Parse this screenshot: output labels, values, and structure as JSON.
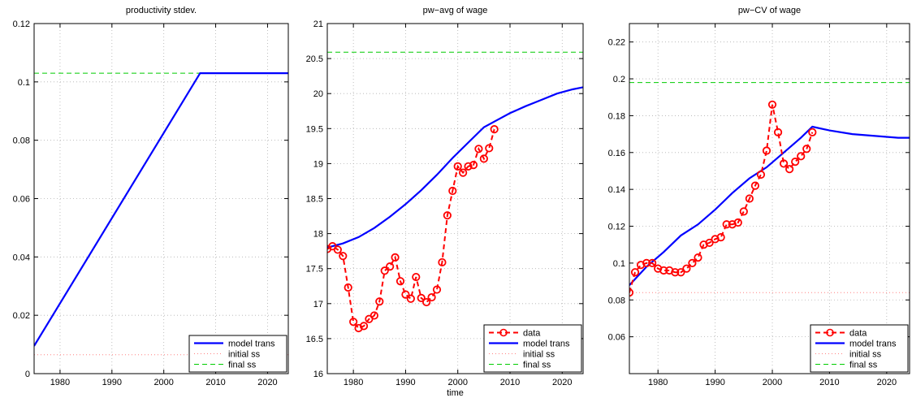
{
  "colors": {
    "model_trans": "#0000ff",
    "data": "#ff0000",
    "initial_ss": "#ff8080",
    "final_ss": "#00cc00",
    "axes": "#000000",
    "grid": "#b0b0b0"
  },
  "x_axis_label": "time",
  "chart_data": [
    {
      "type": "line",
      "title": "productivity stdev.",
      "xlabel": "",
      "ylabel": "",
      "xlim": [
        1975,
        2024
      ],
      "ylim": [
        0,
        0.12
      ],
      "xticks": [
        "1980",
        "1990",
        "2000",
        "2010",
        "2020"
      ],
      "yticks": [
        "0",
        "0.02",
        "0.04",
        "0.06",
        "0.08",
        "0.1",
        "0.12"
      ],
      "grid": true,
      "legend_position": "bottom-right",
      "legend": [
        "model trans",
        "initial ss",
        "final ss"
      ],
      "series": [
        {
          "name": "model trans",
          "x": [
            1975,
            2007,
            2024
          ],
          "y": [
            0.0095,
            0.103,
            0.103
          ]
        },
        {
          "name": "initial ss",
          "x": [
            1975,
            2024
          ],
          "y": [
            0.0065,
            0.0065
          ]
        },
        {
          "name": "final ss",
          "x": [
            1975,
            2024
          ],
          "y": [
            0.103,
            0.103
          ]
        }
      ]
    },
    {
      "type": "line",
      "title": "pw−avg of wage",
      "xlabel": "time",
      "ylabel": "",
      "xlim": [
        1975,
        2024
      ],
      "ylim": [
        16,
        21
      ],
      "xticks": [
        "1980",
        "1990",
        "2000",
        "2010",
        "2020"
      ],
      "yticks": [
        "16",
        "16.5",
        "17",
        "17.5",
        "18",
        "18.5",
        "19",
        "19.5",
        "20",
        "20.5",
        "21"
      ],
      "grid": true,
      "legend_position": "bottom-right",
      "legend": [
        "data",
        "model trans",
        "initial ss",
        "final ss"
      ],
      "series": [
        {
          "name": "data",
          "x": [
            1975,
            1976,
            1977,
            1978,
            1979,
            1980,
            1981,
            1982,
            1983,
            1984,
            1985,
            1986,
            1987,
            1988,
            1989,
            1990,
            1991,
            1992,
            1993,
            1994,
            1995,
            1996,
            1997,
            1998,
            1999,
            2000,
            2001,
            2002,
            2003,
            2004,
            2005,
            2006,
            2007
          ],
          "y": [
            17.78,
            17.82,
            17.77,
            17.68,
            17.23,
            16.74,
            16.65,
            16.68,
            16.78,
            16.83,
            17.03,
            17.47,
            17.53,
            17.66,
            17.32,
            17.13,
            17.07,
            17.38,
            17.08,
            17.02,
            17.09,
            17.2,
            17.59,
            18.26,
            18.61,
            18.96,
            18.87,
            18.96,
            18.98,
            19.21,
            19.07,
            19.22,
            19.49
          ]
        },
        {
          "name": "model trans",
          "x": [
            1975,
            1978,
            1981,
            1984,
            1987,
            1990,
            1993,
            1996,
            1999,
            2002,
            2005,
            2007,
            2010,
            2013,
            2016,
            2019,
            2022,
            2024
          ],
          "y": [
            17.8,
            17.86,
            17.95,
            18.08,
            18.24,
            18.42,
            18.62,
            18.84,
            19.08,
            19.3,
            19.52,
            19.6,
            19.72,
            19.82,
            19.91,
            20.0,
            20.06,
            20.09
          ]
        },
        {
          "name": "initial ss",
          "x": [
            1975,
            2024
          ],
          "y": [
            15.95,
            15.95
          ]
        },
        {
          "name": "final ss",
          "x": [
            1975,
            2024
          ],
          "y": [
            20.59,
            20.59
          ]
        }
      ]
    },
    {
      "type": "line",
      "title": "pw−CV of wage",
      "xlabel": "",
      "ylabel": "",
      "xlim": [
        1975,
        2024
      ],
      "ylim": [
        0.04,
        0.23
      ],
      "xticks": [
        "1980",
        "1990",
        "2000",
        "2010",
        "2020"
      ],
      "yticks": [
        "0.06",
        "0.08",
        "0.1",
        "0.12",
        "0.14",
        "0.16",
        "0.18",
        "0.2",
        "0.22"
      ],
      "grid": true,
      "legend_position": "bottom-right",
      "legend": [
        "data",
        "model trans",
        "initial ss",
        "final ss"
      ],
      "series": [
        {
          "name": "data",
          "x": [
            1975,
            1976,
            1977,
            1978,
            1979,
            1980,
            1981,
            1982,
            1983,
            1984,
            1985,
            1986,
            1987,
            1988,
            1989,
            1990,
            1991,
            1992,
            1993,
            1994,
            1995,
            1996,
            1997,
            1998,
            1999,
            2000,
            2001,
            2002,
            2003,
            2004,
            2005,
            2006,
            2007
          ],
          "y": [
            0.084,
            0.095,
            0.099,
            0.1,
            0.1,
            0.097,
            0.096,
            0.096,
            0.095,
            0.095,
            0.097,
            0.1,
            0.103,
            0.11,
            0.111,
            0.113,
            0.114,
            0.121,
            0.121,
            0.122,
            0.128,
            0.135,
            0.142,
            0.148,
            0.161,
            0.186,
            0.171,
            0.154,
            0.151,
            0.155,
            0.158,
            0.162,
            0.171
          ]
        },
        {
          "name": "model trans",
          "x": [
            1975,
            1978,
            1981,
            1984,
            1987,
            1990,
            1993,
            1996,
            1999,
            2002,
            2005,
            2007,
            2010,
            2014,
            2018,
            2022,
            2024
          ],
          "y": [
            0.088,
            0.098,
            0.106,
            0.115,
            0.121,
            0.129,
            0.138,
            0.146,
            0.152,
            0.16,
            0.168,
            0.174,
            0.172,
            0.17,
            0.169,
            0.168,
            0.168
          ]
        },
        {
          "name": "initial ss",
          "x": [
            1975,
            2024
          ],
          "y": [
            0.084,
            0.084
          ]
        },
        {
          "name": "final ss",
          "x": [
            1975,
            2024
          ],
          "y": [
            0.198,
            0.198
          ]
        }
      ]
    }
  ]
}
